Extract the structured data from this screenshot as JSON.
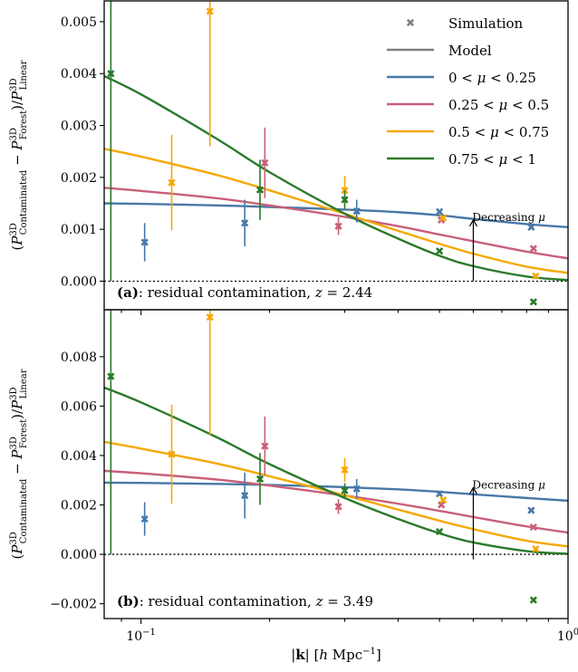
{
  "chart_data": [
    {
      "panel": "a",
      "type": "line",
      "xscale": "log",
      "xlim": [
        0.082,
        1.0
      ],
      "ylim": [
        -0.00055,
        0.0054
      ],
      "yticks": [
        0.0,
        0.001,
        0.002,
        0.003,
        0.004,
        0.005
      ],
      "ytick_labels": [
        "0.000",
        "0.001",
        "0.002",
        "0.003",
        "0.004",
        "0.005"
      ],
      "xticks": [],
      "xtick_labels": [],
      "ylabel": "(P3DContaminated − P3DForest)/P3DLinear",
      "annotation": {
        "label": "(a): residual contamination, z = 2.44",
        "bold_part": "(a)",
        "rest": ": residual contamination, z = 2.44"
      },
      "arrow": {
        "label": "Decreasing μ",
        "x": 0.6,
        "y_from": 0.0,
        "y_to": 0.00118
      },
      "legend": {
        "placement": "top-right",
        "entries": [
          {
            "label": "Simulation",
            "kind": "marker",
            "color": "#808080"
          },
          {
            "label": "Model",
            "kind": "line",
            "color": "#808080"
          },
          {
            "label": "0 < μ < 0.25",
            "kind": "line",
            "color": "#4878a8"
          },
          {
            "label": "0.25 < μ < 0.5",
            "kind": "line",
            "color": "#c8607a"
          },
          {
            "label": "0.5 < μ < 0.75",
            "kind": "line",
            "color": "#f5a800"
          },
          {
            "label": "0.75 < μ < 1",
            "kind": "line",
            "color": "#2a7a2a"
          }
        ]
      },
      "series": [
        {
          "name": "0 < μ < 0.25",
          "color": "#4878a8",
          "model": {
            "x": [
              0.082,
              0.1,
              0.15,
              0.2,
              0.3,
              0.4,
              0.5,
              0.6,
              0.8,
              1.0
            ],
            "y": [
              0.0015,
              0.00149,
              0.00146,
              0.00143,
              0.00138,
              0.00133,
              0.00127,
              0.0012,
              0.0011,
              0.00104
            ]
          },
          "points": [
            {
              "x": 0.102,
              "y": 0.00075,
              "err": 0.00037
            },
            {
              "x": 0.175,
              "y": 0.00112,
              "err": 0.00045
            },
            {
              "x": 0.32,
              "y": 0.00135,
              "err": 0.00022
            },
            {
              "x": 0.5,
              "y": 0.00134,
              "err": 0.0
            },
            {
              "x": 0.82,
              "y": 0.00104,
              "err": 0.0
            }
          ]
        },
        {
          "name": "0.25 < μ < 0.5",
          "color": "#c8607a",
          "model": {
            "x": [
              0.082,
              0.1,
              0.15,
              0.2,
              0.3,
              0.4,
              0.5,
              0.6,
              0.8,
              1.0
            ],
            "y": [
              0.0018,
              0.00174,
              0.0016,
              0.00146,
              0.00124,
              0.00106,
              0.0009,
              0.00077,
              0.00057,
              0.00044
            ]
          },
          "points": [
            {
              "x": 0.195,
              "y": 0.00228,
              "err": 0.00068
            },
            {
              "x": 0.29,
              "y": 0.00106,
              "err": 0.00017
            },
            {
              "x": 0.505,
              "y": 0.00118,
              "err": 0.0
            },
            {
              "x": 0.83,
              "y": 0.00063,
              "err": 0.0
            }
          ]
        },
        {
          "name": "0.5 < μ < 0.75",
          "color": "#f5a800",
          "model": {
            "x": [
              0.082,
              0.1,
              0.15,
              0.2,
              0.3,
              0.4,
              0.5,
              0.6,
              0.8,
              1.0
            ],
            "y": [
              0.00255,
              0.0024,
              0.00205,
              0.00175,
              0.0013,
              0.00097,
              0.00072,
              0.00053,
              0.00028,
              0.00016
            ]
          },
          "points": [
            {
              "x": 0.118,
              "y": 0.0019,
              "err": 0.00092
            },
            {
              "x": 0.145,
              "y": 0.0052,
              "err": 0.0026
            },
            {
              "x": 0.3,
              "y": 0.00175,
              "err": 0.00028
            },
            {
              "x": 0.51,
              "y": 0.00122,
              "err": 0.0
            },
            {
              "x": 0.84,
              "y": 0.0001,
              "err": 0.0
            }
          ]
        },
        {
          "name": "0.75 < μ < 1",
          "color": "#2a7a2a",
          "model": {
            "x": [
              0.082,
              0.1,
              0.15,
              0.2,
              0.3,
              0.4,
              0.5,
              0.6,
              0.8,
              1.0
            ],
            "y": [
              0.00395,
              0.0036,
              0.00275,
              0.0021,
              0.0013,
              0.00082,
              0.00049,
              0.00029,
              9e-05,
              2e-05
            ]
          },
          "points": [
            {
              "x": 0.085,
              "y": 0.004,
              "err": 0.004
            },
            {
              "x": 0.19,
              "y": 0.00176,
              "err": 0.00058
            },
            {
              "x": 0.3,
              "y": 0.00157,
              "err": 0.00018
            },
            {
              "x": 0.5,
              "y": 0.00058,
              "err": 0.0
            },
            {
              "x": 0.83,
              "y": -0.0004,
              "err": 0.0
            }
          ]
        }
      ]
    },
    {
      "panel": "b",
      "type": "line",
      "xscale": "log",
      "xlim": [
        0.082,
        1.0
      ],
      "ylim": [
        -0.0026,
        0.0099
      ],
      "yticks": [
        -0.002,
        0.0,
        0.002,
        0.004,
        0.006,
        0.008
      ],
      "ytick_labels": [
        "−0.002",
        "0.000",
        "0.002",
        "0.004",
        "0.006",
        "0.008"
      ],
      "xticks": [
        0.1,
        1.0
      ],
      "xtick_labels": [
        "10−1",
        "100"
      ],
      "ylabel": "(P3DContaminated − P3DForest)/P3DLinear",
      "xlabel": "|k| [h Mpc−1]",
      "annotation": {
        "label": "(b): residual contamination, z = 3.49",
        "bold_part": "(b)",
        "rest": ": residual contamination, z = 3.49"
      },
      "arrow": {
        "label": "Decreasing μ",
        "x": 0.6,
        "y_from": -0.0002,
        "y_to": 0.0027
      },
      "series": [
        {
          "name": "0 < μ < 0.25",
          "color": "#4878a8",
          "model": {
            "x": [
              0.082,
              0.1,
              0.15,
              0.2,
              0.3,
              0.4,
              0.5,
              0.6,
              0.8,
              1.0
            ],
            "y": [
              0.0029,
              0.00289,
              0.00285,
              0.00281,
              0.00272,
              0.00263,
              0.00253,
              0.00243,
              0.00228,
              0.00217
            ]
          },
          "points": [
            {
              "x": 0.102,
              "y": 0.00143,
              "err": 0.00068
            },
            {
              "x": 0.175,
              "y": 0.00238,
              "err": 0.00093
            },
            {
              "x": 0.32,
              "y": 0.00265,
              "err": 0.0004
            },
            {
              "x": 0.5,
              "y": 0.00245,
              "err": 0.0
            },
            {
              "x": 0.82,
              "y": 0.00178,
              "err": 0.0
            }
          ]
        },
        {
          "name": "0.25 < μ < 0.5",
          "color": "#c8607a",
          "model": {
            "x": [
              0.082,
              0.1,
              0.15,
              0.2,
              0.3,
              0.4,
              0.5,
              0.6,
              0.8,
              1.0
            ],
            "y": [
              0.00338,
              0.00328,
              0.00303,
              0.00278,
              0.00238,
              0.00205,
              0.00176,
              0.00151,
              0.00113,
              0.00088
            ]
          },
          "points": [
            {
              "x": 0.195,
              "y": 0.00438,
              "err": 0.0012
            },
            {
              "x": 0.29,
              "y": 0.00193,
              "err": 0.0003
            },
            {
              "x": 0.505,
              "y": 0.002,
              "err": 0.0
            },
            {
              "x": 0.83,
              "y": 0.0011,
              "err": 0.0
            }
          ]
        },
        {
          "name": "0.5 < μ < 0.75",
          "color": "#f5a800",
          "model": {
            "x": [
              0.082,
              0.1,
              0.15,
              0.2,
              0.3,
              0.4,
              0.5,
              0.6,
              0.8,
              1.0
            ],
            "y": [
              0.00455,
              0.00428,
              0.00368,
              0.00316,
              0.00239,
              0.00181,
              0.00136,
              0.00102,
              0.00055,
              0.00032
            ]
          },
          "points": [
            {
              "x": 0.118,
              "y": 0.00405,
              "err": 0.002
            },
            {
              "x": 0.145,
              "y": 0.0096,
              "err": 0.0048
            },
            {
              "x": 0.3,
              "y": 0.00342,
              "err": 0.00048
            },
            {
              "x": 0.51,
              "y": 0.0022,
              "err": 0.0
            },
            {
              "x": 0.84,
              "y": 0.00022,
              "err": 0.0
            }
          ]
        },
        {
          "name": "0.75 < μ < 1",
          "color": "#2a7a2a",
          "model": {
            "x": [
              0.082,
              0.1,
              0.15,
              0.2,
              0.3,
              0.4,
              0.5,
              0.6,
              0.8,
              1.0
            ],
            "y": [
              0.00675,
              0.00615,
              0.00475,
              0.00365,
              0.00228,
              0.00143,
              0.00085,
              0.00048,
              0.00013,
              2e-05
            ]
          },
          "points": [
            {
              "x": 0.085,
              "y": 0.0072,
              "err": 0.0072
            },
            {
              "x": 0.19,
              "y": 0.00305,
              "err": 0.00105
            },
            {
              "x": 0.3,
              "y": 0.00258,
              "err": 0.0003
            },
            {
              "x": 0.5,
              "y": 0.00092,
              "err": 0.0
            },
            {
              "x": 0.83,
              "y": -0.00185,
              "err": 0.0
            }
          ]
        }
      ]
    }
  ]
}
